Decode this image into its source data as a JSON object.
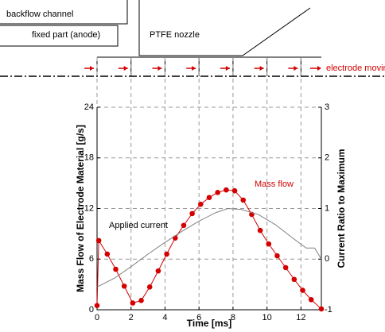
{
  "diagram": {
    "labels": [
      "backflow channel",
      "fixed part (anode)",
      "PTFE nozzle",
      "electrode moving"
    ]
  },
  "chart_data": {
    "type": "line",
    "xlabel": "Time [ms]",
    "ylabel": "Mass Flow of Electrode Material [g/s]",
    "y2label": "Current Ratio to Maximum",
    "xlim": [
      0,
      13.2
    ],
    "xticks": [
      0,
      2,
      4,
      6,
      8,
      10,
      12
    ],
    "ylim": [
      0,
      24
    ],
    "yticks": [
      0,
      6,
      12,
      18,
      24
    ],
    "y2lim": [
      -1,
      3
    ],
    "y2ticks": [
      -1,
      0,
      1,
      2,
      3
    ],
    "grid": true,
    "series": [
      {
        "name": "Mass flow",
        "color": "#d40000",
        "marker": true,
        "x": [
          0,
          0.1,
          0.6,
          1.1,
          1.6,
          2.1,
          2.6,
          3.1,
          3.6,
          4.1,
          4.6,
          5.1,
          5.6,
          6.1,
          6.6,
          7.1,
          7.6,
          8.1,
          8.6,
          9.1,
          9.6,
          10.1,
          10.6,
          11.1,
          11.6,
          12.1,
          12.6,
          13.2
        ],
        "values": [
          0.5,
          8.2,
          6.6,
          4.8,
          2.8,
          0.8,
          1.1,
          2.7,
          4.6,
          6.6,
          8.5,
          10.0,
          11.4,
          12.5,
          13.3,
          13.9,
          14.2,
          14.1,
          13.0,
          11.3,
          9.4,
          7.8,
          6.4,
          5.0,
          3.6,
          2.3,
          1.2,
          0.1
        ]
      },
      {
        "name": "Applied current",
        "color": "#808080",
        "axis": "y2",
        "x": [
          0,
          1,
          2,
          3,
          4,
          5,
          6,
          7,
          7.7,
          8.5,
          9.5,
          10.5,
          11.5,
          12.3,
          12.8,
          13.2
        ],
        "values": [
          -0.55,
          -0.38,
          -0.15,
          0.1,
          0.33,
          0.55,
          0.75,
          0.92,
          1.0,
          0.98,
          0.88,
          0.68,
          0.42,
          0.22,
          0.22,
          0.0
        ]
      }
    ]
  }
}
